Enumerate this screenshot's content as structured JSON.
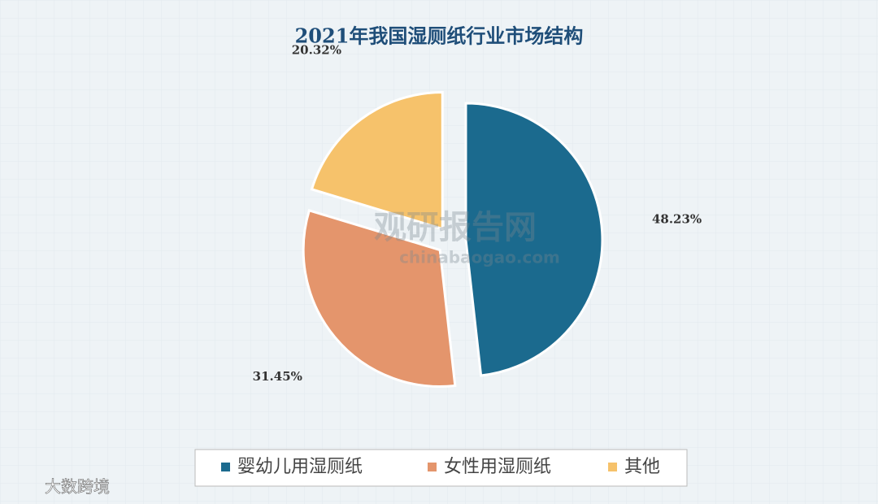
{
  "chart_data": {
    "type": "pie",
    "title": "2021年我国湿厕纸行业市场结构",
    "categories": [
      "婴幼儿用湿厕纸",
      "女性用湿厕纸",
      "其他"
    ],
    "values": [
      48.23,
      31.45,
      20.32
    ],
    "value_labels": [
      "48.23%",
      "31.45%",
      "20.32%"
    ],
    "colors": [
      "#1b6a8e",
      "#e4956c",
      "#f6c26b"
    ],
    "legend": "bottom",
    "annotations": [
      "观研报告网",
      "chinabaogao.com",
      "大数跨境"
    ]
  }
}
